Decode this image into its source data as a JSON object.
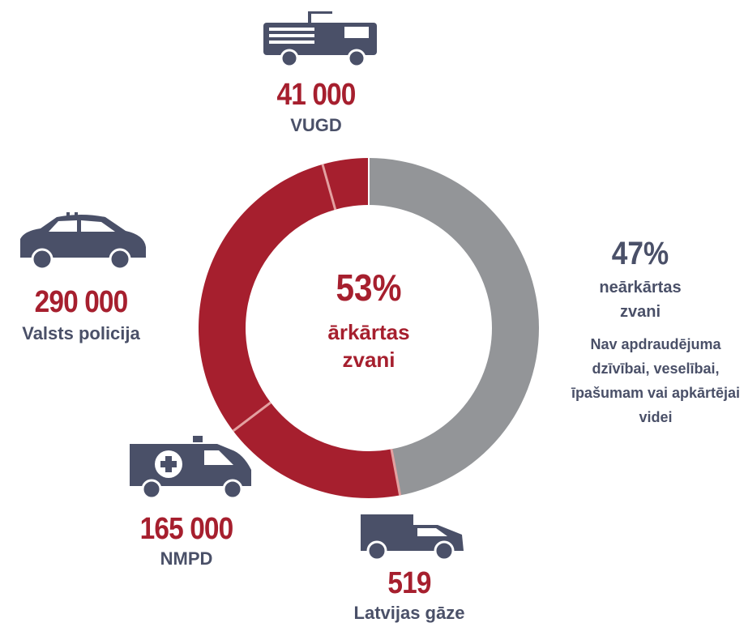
{
  "chart_data": {
    "type": "donut",
    "groups": [
      {
        "name": "ārkārtas zvani",
        "value": 53,
        "value_label": "53%",
        "color": "#a61f2e"
      },
      {
        "name": "neārkārtas zvani",
        "value": 47,
        "value_label": "47%",
        "color": "#939598",
        "note": "Nav apdraudējuma dzīvībai, veselībai, īpašumam vai apkārtējai videi"
      }
    ],
    "categories": [
      "VUGD",
      "Valsts policija",
      "NMPD",
      "Latvijas gāze"
    ],
    "values": [
      41000,
      290000,
      165000,
      519
    ],
    "value_labels": [
      "41 000",
      "290 000",
      "165 000",
      "519"
    ]
  }
}
